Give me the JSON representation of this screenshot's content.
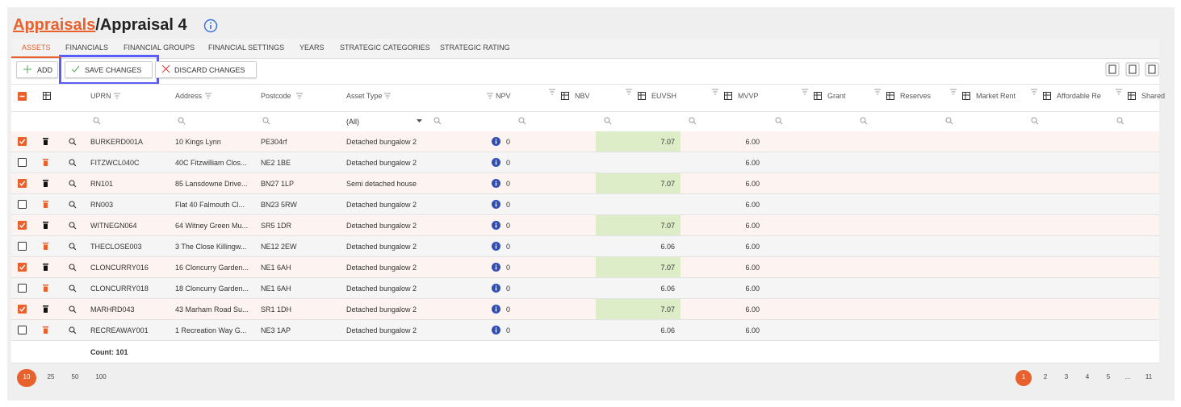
{
  "header": {
    "breadcrumb_link": "Appraisals",
    "separator": "/",
    "title": "Appraisal 4"
  },
  "tabs": [
    "ASSETS",
    "FINANCIALS",
    "FINANCIAL GROUPS",
    "FINANCIAL SETTINGS",
    "YEARS",
    "STRATEGIC CATEGORIES",
    "STRATEGIC RATING"
  ],
  "active_tab": 0,
  "toolbar": {
    "add": "ADD",
    "save": "SAVE CHANGES",
    "discard": "DISCARD CHANGES"
  },
  "table": {
    "columns": [
      "UPRN",
      "Address",
      "Postcode",
      "Asset Type",
      "NPV",
      "NBV",
      "EUVSH",
      "MVVP",
      "Grant",
      "Reserves",
      "Market Rent",
      "Affordable Re",
      "Shared"
    ],
    "filter_asset_type": "(All)",
    "rows": [
      {
        "checked": true,
        "uprn": "BURKERD001A",
        "address": "10 Kings Lynn",
        "postcode": "PE304rf",
        "asset_type": "Detached bungalow 2",
        "npv": "0",
        "euvsh": "7.07",
        "mvvp": "6.00"
      },
      {
        "checked": false,
        "uprn": "FITZWCL040C",
        "address": "40C Fitzwilliam Clos...",
        "postcode": "NE2 1BE",
        "asset_type": "Detached bungalow 2",
        "npv": "0",
        "euvsh": null,
        "mvvp": "6.00"
      },
      {
        "checked": true,
        "uprn": "RN101",
        "address": "85 Lansdowne Drive...",
        "postcode": "BN27 1LP",
        "asset_type": "Semi detached house",
        "npv": "0",
        "euvsh": "7.07",
        "mvvp": "6.00"
      },
      {
        "checked": false,
        "uprn": "RN003",
        "address": "Flat 40 Falmouth Cl...",
        "postcode": "BN23 5RW",
        "asset_type": "Detached bungalow 2",
        "npv": "0",
        "euvsh": null,
        "mvvp": "6.00"
      },
      {
        "checked": true,
        "uprn": "WITNEGN064",
        "address": "64 Witney Green Mu...",
        "postcode": "SR5 1DR",
        "asset_type": "Detached bungalow 2",
        "npv": "0",
        "euvsh": "7.07",
        "mvvp": "6.00"
      },
      {
        "checked": false,
        "uprn": "THECLOSE003",
        "address": "3 The Close Killingw...",
        "postcode": "NE12 2EW",
        "asset_type": "Detached bungalow 2",
        "npv": "0",
        "euvsh": "6.06",
        "mvvp": "6.00"
      },
      {
        "checked": true,
        "uprn": "CLONCURRY016",
        "address": "16 Cloncurry Garden...",
        "postcode": "NE1 6AH",
        "asset_type": "Detached bungalow 2",
        "npv": "0",
        "euvsh": "7.07",
        "mvvp": "6.00"
      },
      {
        "checked": false,
        "uprn": "CLONCURRY018",
        "address": "18 Cloncurry Garden...",
        "postcode": "NE1 6AH",
        "asset_type": "Detached bungalow 2",
        "npv": "0",
        "euvsh": "6.06",
        "mvvp": "6.00"
      },
      {
        "checked": true,
        "uprn": "MARHRD043",
        "address": "43 Marham Road Su...",
        "postcode": "SR1 1DH",
        "asset_type": "Detached bungalow 2",
        "npv": "0",
        "euvsh": "7.07",
        "mvvp": "6.00"
      },
      {
        "checked": false,
        "uprn": "RECREAWAY001",
        "address": "1 Recreation Way G...",
        "postcode": "NE3 1AP",
        "asset_type": "Detached bungalow 2",
        "npv": "0",
        "euvsh": "6.06",
        "mvvp": "6.00"
      }
    ],
    "count": "Count: 101"
  },
  "pagination": {
    "page_sizes": [
      "10",
      "25",
      "50",
      "100"
    ],
    "active_size": 0,
    "pages": [
      "1",
      "2",
      "3",
      "4",
      "5",
      "...",
      "11"
    ],
    "active_page": 0
  }
}
